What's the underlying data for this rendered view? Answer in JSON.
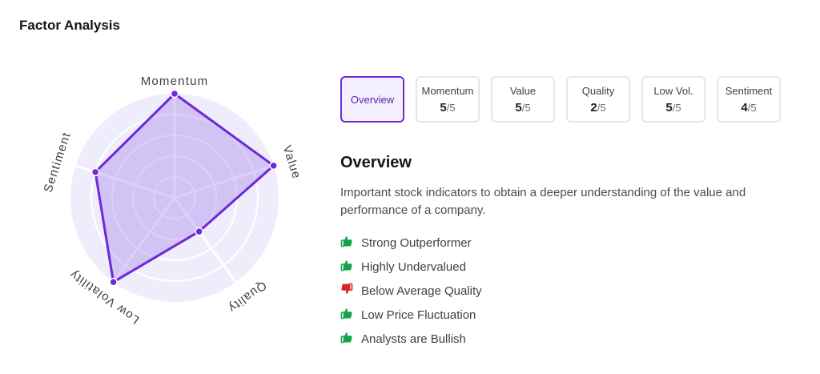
{
  "header": {
    "title": "Factor Analysis"
  },
  "colors": {
    "accent": "#6d28d9",
    "positive": "#16a34a",
    "negative": "#dc2626"
  },
  "radar": {
    "max": 5,
    "axes": [
      {
        "label": "Momentum",
        "value": 5
      },
      {
        "label": "Value",
        "value": 5
      },
      {
        "label": "Quality",
        "value": 2
      },
      {
        "label": "Low Volatility",
        "value": 5
      },
      {
        "label": "Sentiment",
        "value": 4
      }
    ]
  },
  "tabs": [
    {
      "label": "Overview",
      "active": true
    },
    {
      "label": "Momentum",
      "score": "5",
      "max": "/5"
    },
    {
      "label": "Value",
      "score": "5",
      "max": "/5"
    },
    {
      "label": "Quality",
      "score": "2",
      "max": "/5"
    },
    {
      "label": "Low Vol.",
      "score": "5",
      "max": "/5"
    },
    {
      "label": "Sentiment",
      "score": "4",
      "max": "/5"
    }
  ],
  "panel": {
    "heading": "Overview",
    "description": "Important stock indicators to obtain a deeper understanding of the value and performance of a company.",
    "signals": [
      {
        "text": "Strong Outperformer",
        "icon": "thumbs-up-icon"
      },
      {
        "text": "Highly Undervalued",
        "icon": "thumbs-up-icon"
      },
      {
        "text": "Below Average Quality",
        "icon": "thumbs-down-icon"
      },
      {
        "text": "Low Price Fluctuation",
        "icon": "thumbs-up-icon"
      },
      {
        "text": "Analysts are Bullish",
        "icon": "thumbs-up-icon"
      }
    ]
  }
}
